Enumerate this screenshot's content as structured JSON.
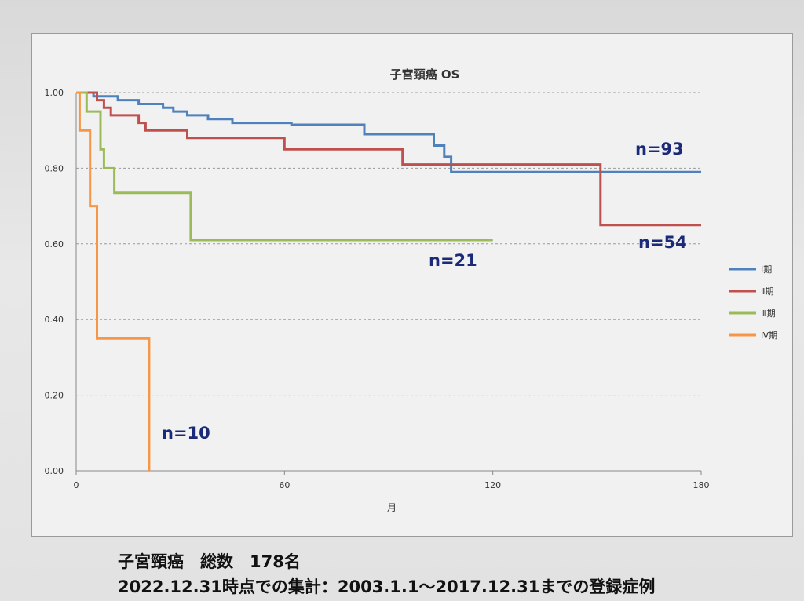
{
  "chart_data": {
    "type": "line",
    "step": true,
    "title": "子宮頸癌 OS",
    "xlabel": "月",
    "ylabel": "",
    "xlim": [
      0,
      180
    ],
    "ylim": [
      0,
      1
    ],
    "xticks": [
      0,
      60,
      120,
      180
    ],
    "yticks": [
      0.0,
      0.2,
      0.4,
      0.6,
      0.8,
      1.0
    ],
    "ytick_labels": [
      "0.00",
      "0.20",
      "0.40",
      "0.60",
      "0.80",
      "1.00"
    ],
    "grid": "horizontal dashed",
    "legend_position": "right",
    "series": [
      {
        "name": "Ⅰ期",
        "color": "#4f81bd",
        "count_label": "n=93",
        "points": [
          [
            0,
            1.0
          ],
          [
            5,
            1.0
          ],
          [
            5,
            0.99
          ],
          [
            12,
            0.99
          ],
          [
            12,
            0.98
          ],
          [
            18,
            0.98
          ],
          [
            18,
            0.97
          ],
          [
            25,
            0.97
          ],
          [
            25,
            0.96
          ],
          [
            28,
            0.96
          ],
          [
            28,
            0.95
          ],
          [
            32,
            0.95
          ],
          [
            32,
            0.94
          ],
          [
            38,
            0.94
          ],
          [
            38,
            0.93
          ],
          [
            45,
            0.93
          ],
          [
            45,
            0.92
          ],
          [
            62,
            0.92
          ],
          [
            62,
            0.915
          ],
          [
            83,
            0.915
          ],
          [
            83,
            0.89
          ],
          [
            103,
            0.89
          ],
          [
            103,
            0.86
          ],
          [
            106,
            0.86
          ],
          [
            106,
            0.83
          ],
          [
            108,
            0.83
          ],
          [
            108,
            0.79
          ],
          [
            180,
            0.79
          ]
        ]
      },
      {
        "name": "Ⅱ期",
        "color": "#c0504d",
        "count_label": "n=54",
        "points": [
          [
            0,
            1.0
          ],
          [
            6,
            1.0
          ],
          [
            6,
            0.98
          ],
          [
            8,
            0.98
          ],
          [
            8,
            0.96
          ],
          [
            10,
            0.96
          ],
          [
            10,
            0.94
          ],
          [
            18,
            0.94
          ],
          [
            18,
            0.92
          ],
          [
            20,
            0.92
          ],
          [
            20,
            0.9
          ],
          [
            32,
            0.9
          ],
          [
            32,
            0.88
          ],
          [
            60,
            0.88
          ],
          [
            60,
            0.85
          ],
          [
            94,
            0.85
          ],
          [
            94,
            0.81
          ],
          [
            151,
            0.81
          ],
          [
            151,
            0.65
          ],
          [
            180,
            0.65
          ]
        ]
      },
      {
        "name": "Ⅲ期",
        "color": "#9bbb59",
        "count_label": "n=21",
        "points": [
          [
            0,
            1.0
          ],
          [
            3,
            1.0
          ],
          [
            3,
            0.95
          ],
          [
            7,
            0.95
          ],
          [
            7,
            0.85
          ],
          [
            8,
            0.85
          ],
          [
            8,
            0.8
          ],
          [
            11,
            0.8
          ],
          [
            11,
            0.735
          ],
          [
            33,
            0.735
          ],
          [
            33,
            0.61
          ],
          [
            120,
            0.61
          ]
        ]
      },
      {
        "name": "Ⅳ期",
        "color": "#f79646",
        "count_label": "n=10",
        "points": [
          [
            0,
            1.0
          ],
          [
            1,
            1.0
          ],
          [
            1,
            0.9
          ],
          [
            4,
            0.9
          ],
          [
            4,
            0.7
          ],
          [
            6,
            0.7
          ],
          [
            6,
            0.35
          ],
          [
            21,
            0.35
          ],
          [
            21,
            0.0
          ]
        ]
      }
    ]
  },
  "footer": {
    "line1": "子宮頸癌　総数　178名",
    "line2": "2022.12.31時点での集計：2003.1.1～2017.12.31までの登録症例"
  }
}
